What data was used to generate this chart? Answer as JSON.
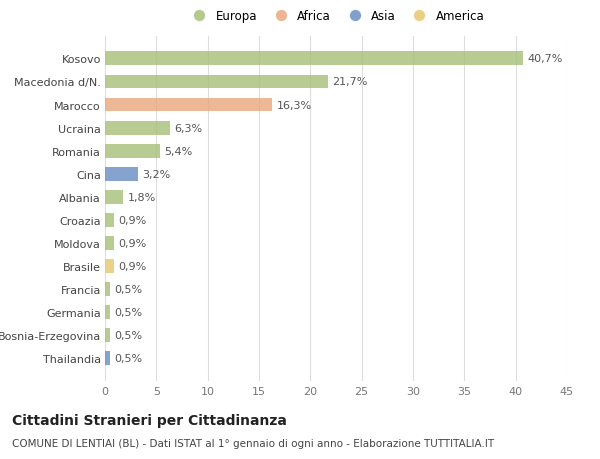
{
  "countries": [
    "Kosovo",
    "Macedonia d/N.",
    "Marocco",
    "Ucraina",
    "Romania",
    "Cina",
    "Albania",
    "Croazia",
    "Moldova",
    "Brasile",
    "Francia",
    "Germania",
    "Bosnia-Erzegovina",
    "Thailandia"
  ],
  "values": [
    40.7,
    21.7,
    16.3,
    6.3,
    5.4,
    3.2,
    1.8,
    0.9,
    0.9,
    0.9,
    0.5,
    0.5,
    0.5,
    0.5
  ],
  "labels": [
    "40,7%",
    "21,7%",
    "16,3%",
    "6,3%",
    "5,4%",
    "3,2%",
    "1,8%",
    "0,9%",
    "0,9%",
    "0,9%",
    "0,5%",
    "0,5%",
    "0,5%",
    "0,5%"
  ],
  "colors": [
    "#a8c07a",
    "#a8c07a",
    "#e8a97e",
    "#a8c07a",
    "#a8c07a",
    "#6b8fc4",
    "#a8c07a",
    "#a8c07a",
    "#a8c07a",
    "#e8c86e",
    "#a8c07a",
    "#a8c07a",
    "#a8c07a",
    "#6b8fc4"
  ],
  "legend": [
    {
      "label": "Europa",
      "color": "#a8c07a"
    },
    {
      "label": "Africa",
      "color": "#e8a97e"
    },
    {
      "label": "Asia",
      "color": "#6b8fc4"
    },
    {
      "label": "America",
      "color": "#e8c86e"
    }
  ],
  "xlim": [
    0,
    45
  ],
  "xticks": [
    0,
    5,
    10,
    15,
    20,
    25,
    30,
    35,
    40,
    45
  ],
  "title": "Cittadini Stranieri per Cittadinanza",
  "subtitle": "COMUNE DI LENTIAI (BL) - Dati ISTAT al 1° gennaio di ogni anno - Elaborazione TUTTITALIA.IT",
  "bg_color": "#ffffff",
  "grid_color": "#dddddd",
  "bar_height": 0.6,
  "label_fontsize": 8,
  "tick_fontsize": 8,
  "title_fontsize": 10,
  "subtitle_fontsize": 7.5
}
